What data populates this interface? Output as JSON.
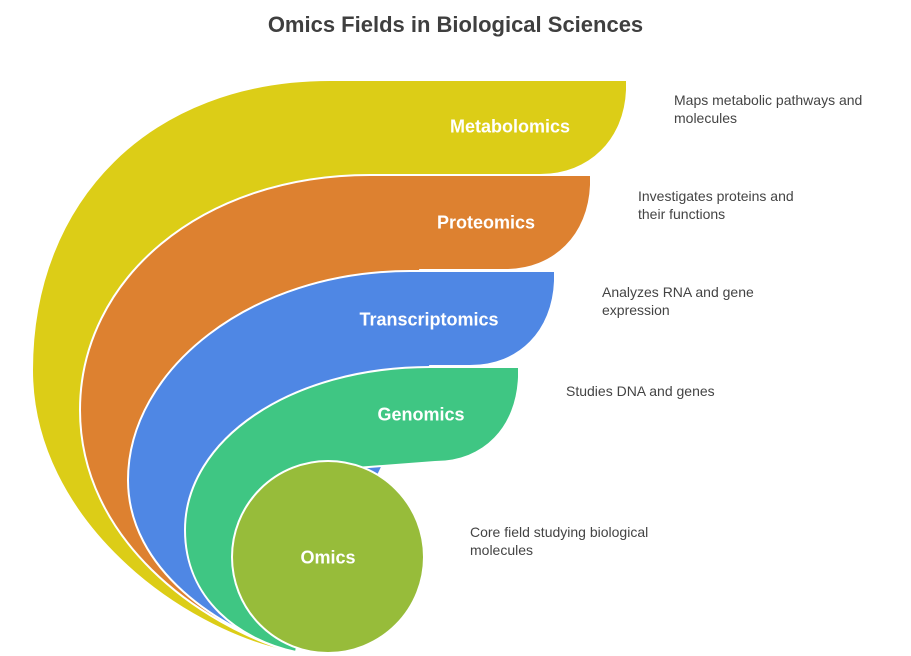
{
  "title": "Omics Fields in Biological Sciences",
  "layers": [
    {
      "label": "Metabolomics",
      "description": "Maps metabolic pathways and molecules",
      "color": "#dccd17"
    },
    {
      "label": "Proteomics",
      "description": "Investigates proteins and their functions",
      "color": "#dd8130"
    },
    {
      "label": "Transcriptomics",
      "description": "Analyzes RNA and gene expression",
      "color": "#4f87e4"
    },
    {
      "label": "Genomics",
      "description": "Studies DNA and genes",
      "color": "#3fc683"
    },
    {
      "label": "Omics",
      "description": "Core field studying biological molecules",
      "color": "#97bc3a"
    }
  ]
}
